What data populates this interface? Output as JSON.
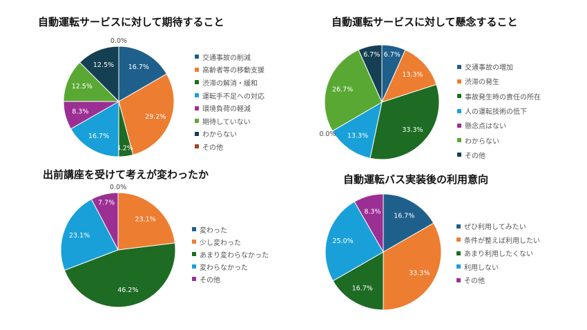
{
  "colors": [
    "#1f5f8b",
    "#ed7d31",
    "#1e6b24",
    "#1aa0d8",
    "#9b2f93",
    "#5aa834",
    "#153f52",
    "#a0432a"
  ],
  "chart_data": [
    {
      "type": "pie",
      "title": "自動運転サービスに対して期待すること",
      "legend": "right",
      "categories": [
        "交通事故の削減",
        "高齢者等の移動支援",
        "渋滞の解消・緩和",
        "運転手不足への対応",
        "環境負荷の軽減",
        "期待していない",
        "わからない",
        "その他"
      ],
      "values": [
        16.7,
        29.2,
        4.2,
        16.7,
        8.3,
        12.5,
        12.5,
        0.0
      ],
      "colors": [
        "#1f5f8b",
        "#ed7d31",
        "#1e6b24",
        "#1aa0d8",
        "#9b2f93",
        "#5aa834",
        "#153f52",
        "#a0432a"
      ]
    },
    {
      "type": "pie",
      "title": "自動運転サービスに対して懸念すること",
      "legend": "right",
      "categories": [
        "交通事故の増加",
        "渋滞の発生",
        "事故発生時の責任の所在",
        "人の運転技術の低下",
        "懸念点はない",
        "わからない",
        "その他"
      ],
      "values": [
        6.7,
        13.3,
        33.3,
        13.3,
        0.0,
        26.7,
        6.7
      ],
      "colors": [
        "#1f5f8b",
        "#ed7d31",
        "#1e6b24",
        "#1aa0d8",
        "#9b2f93",
        "#5aa834",
        "#153f52"
      ]
    },
    {
      "type": "pie",
      "title": "出前講座を受けて考えが変わったか",
      "legend": "right",
      "categories": [
        "変わった",
        "少し変わった",
        "あまり変わらなかった",
        "変わらなかった",
        "その他"
      ],
      "values": [
        0.0,
        23.1,
        46.2,
        23.1,
        7.7
      ],
      "colors": [
        "#1f5f8b",
        "#ed7d31",
        "#1e6b24",
        "#1aa0d8",
        "#9b2f93"
      ]
    },
    {
      "type": "pie",
      "title": "自動運転バス実装後の利用意向",
      "legend": "right",
      "categories": [
        "ぜひ利用してみたい",
        "条件が整えば利用したい",
        "あまり利用したくない",
        "利用しない",
        "その他"
      ],
      "values": [
        16.7,
        33.3,
        16.7,
        25.0,
        8.3
      ],
      "colors": [
        "#1f5f8b",
        "#ed7d31",
        "#1e6b24",
        "#1aa0d8",
        "#9b2f93"
      ]
    }
  ]
}
